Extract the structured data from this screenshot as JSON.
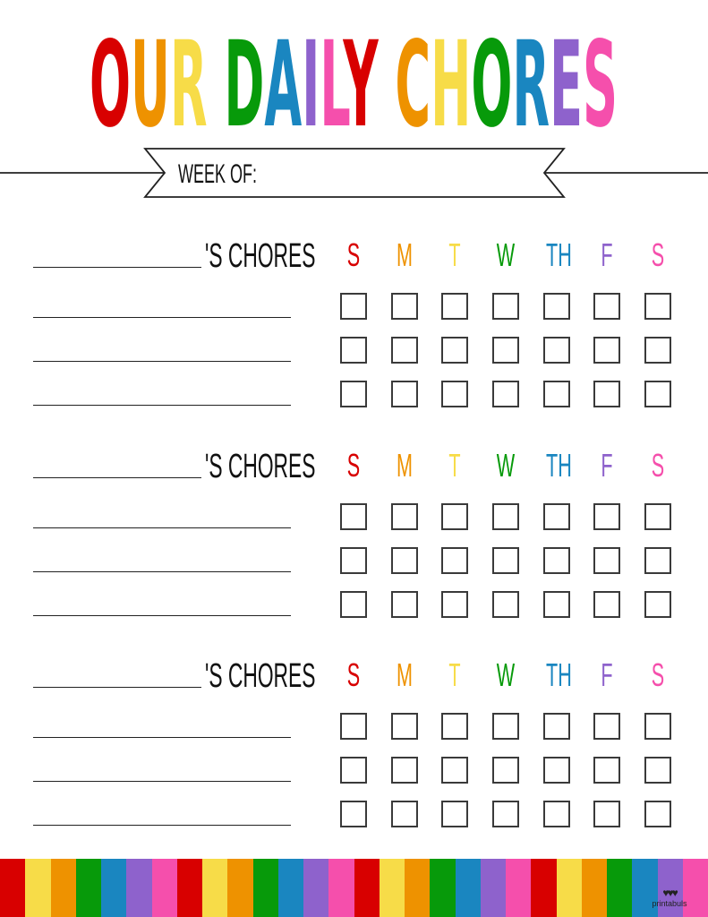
{
  "colors": {
    "red": "#d80000",
    "orange": "#ee9200",
    "yellow": "#f7dc48",
    "green": "#079a0a",
    "blue": "#1a86c0",
    "purple": "#8e62cc",
    "pink": "#f54fac",
    "ink": "#222222"
  },
  "title": {
    "text": "OUR DAILY CHORES",
    "letter_colors": [
      "red",
      "orange",
      "yellow",
      "",
      "green",
      "blue",
      "purple",
      "pink",
      "red",
      "",
      "orange",
      "yellow",
      "green",
      "blue",
      "purple",
      "pink"
    ]
  },
  "banner": {
    "week_of_label": "WEEK OF:"
  },
  "days": [
    {
      "label": "S",
      "color": "red"
    },
    {
      "label": "M",
      "color": "orange"
    },
    {
      "label": "T",
      "color": "yellow"
    },
    {
      "label": "W",
      "color": "green"
    },
    {
      "label": "TH",
      "color": "blue"
    },
    {
      "label": "F",
      "color": "purple"
    },
    {
      "label": "S",
      "color": "pink"
    }
  ],
  "sections": [
    {
      "chores_label": "'S CHORES",
      "rows": 3
    },
    {
      "chores_label": "'S CHORES",
      "rows": 3
    },
    {
      "chores_label": "'S CHORES",
      "rows": 3
    }
  ],
  "footer": {
    "stripe_colors": [
      "red",
      "yellow",
      "orange",
      "green",
      "blue",
      "purple",
      "pink"
    ],
    "stripe_repeats": 4,
    "logo_text": "printabuls"
  }
}
